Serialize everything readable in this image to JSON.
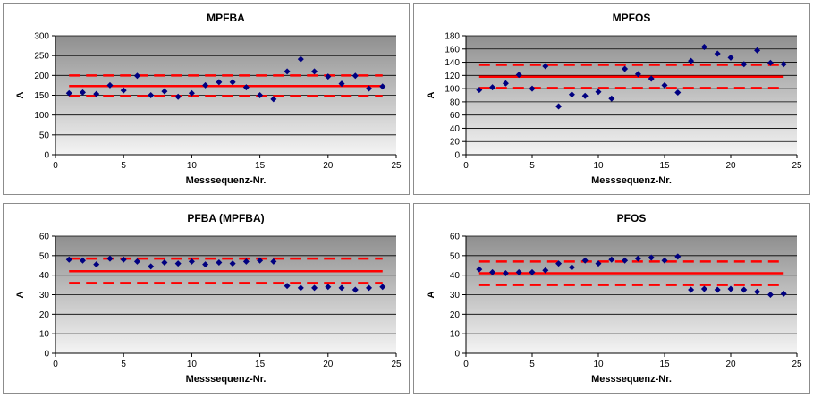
{
  "colors": {
    "panel_border": "#8c8c8c",
    "plot_gradient_top": "#8f8f8f",
    "plot_gradient_bottom": "#f4f4f4",
    "grid": "#000000",
    "control_limit": "#ff0000",
    "marker": "#000080"
  },
  "chart_data": [
    {
      "type": "scatter",
      "title": "MPFBA",
      "xlabel": "Messsequenz-Nr.",
      "ylabel": "A",
      "xlim": [
        0,
        25
      ],
      "ylim": [
        0,
        300
      ],
      "xticks": [
        0,
        5,
        10,
        15,
        20,
        25
      ],
      "yticks": [
        0,
        50,
        100,
        150,
        200,
        250,
        300
      ],
      "grid": true,
      "x": [
        1,
        2,
        3,
        4,
        5,
        6,
        7,
        8,
        9,
        10,
        11,
        12,
        13,
        14,
        15,
        16,
        17,
        18,
        19,
        20,
        21,
        22,
        23,
        24
      ],
      "y": [
        155,
        157,
        153,
        175,
        162,
        199,
        150,
        160,
        146,
        155,
        175,
        183,
        183,
        170,
        150,
        140,
        210,
        241,
        210,
        197,
        179,
        199,
        167,
        172
      ],
      "lines": {
        "mean": 173,
        "upper": 200,
        "lower": 148
      }
    },
    {
      "type": "scatter",
      "title": "MPFOS",
      "xlabel": "Messsequenz-Nr.",
      "ylabel": "A",
      "xlim": [
        0,
        25
      ],
      "ylim": [
        0,
        180
      ],
      "xticks": [
        0,
        5,
        10,
        15,
        20,
        25
      ],
      "yticks": [
        0,
        20,
        40,
        60,
        80,
        100,
        120,
        140,
        160,
        180
      ],
      "grid": true,
      "x": [
        1,
        2,
        3,
        4,
        5,
        6,
        7,
        8,
        9,
        10,
        11,
        12,
        13,
        14,
        15,
        16,
        17,
        18,
        19,
        20,
        21,
        22,
        23,
        24
      ],
      "y": [
        98,
        102,
        108,
        121,
        100,
        134,
        73,
        91,
        89,
        95,
        85,
        130,
        122,
        115,
        105,
        94,
        142,
        163,
        153,
        147,
        137,
        158,
        139,
        137
      ],
      "lines": {
        "mean": 118,
        "upper": 136,
        "lower": 101
      }
    },
    {
      "type": "scatter",
      "title": "PFBA (MPFBA)",
      "xlabel": "Messsequenz-Nr.",
      "ylabel": "A",
      "xlim": [
        0,
        25
      ],
      "ylim": [
        0,
        60
      ],
      "xticks": [
        0,
        5,
        10,
        15,
        20,
        25
      ],
      "yticks": [
        0,
        10,
        20,
        30,
        40,
        50,
        60
      ],
      "grid": true,
      "x": [
        1,
        2,
        3,
        4,
        5,
        6,
        7,
        8,
        9,
        10,
        11,
        12,
        13,
        14,
        15,
        16,
        17,
        18,
        19,
        20,
        21,
        22,
        23,
        24
      ],
      "y": [
        48,
        47.5,
        45.5,
        48.5,
        48,
        47,
        44.5,
        46.5,
        46,
        47,
        45.5,
        46.5,
        46,
        47,
        47.5,
        47,
        34.5,
        33.5,
        33.5,
        34,
        33.5,
        32.5,
        33.5,
        34
      ],
      "lines": {
        "mean": 42,
        "upper": 48.5,
        "lower": 36
      }
    },
    {
      "type": "scatter",
      "title": "PFOS",
      "xlabel": "Messsequenz-Nr.",
      "ylabel": "A",
      "xlim": [
        0,
        25
      ],
      "ylim": [
        0,
        60
      ],
      "xticks": [
        0,
        5,
        10,
        15,
        20,
        25
      ],
      "yticks": [
        0,
        10,
        20,
        30,
        40,
        50,
        60
      ],
      "grid": true,
      "x": [
        1,
        2,
        3,
        4,
        5,
        6,
        7,
        8,
        9,
        10,
        11,
        12,
        13,
        14,
        15,
        16,
        17,
        18,
        19,
        20,
        21,
        22,
        23,
        24
      ],
      "y": [
        43,
        41.5,
        41,
        41.5,
        41.5,
        42.5,
        46,
        44,
        47.5,
        46,
        48,
        47.5,
        48.5,
        49,
        47.5,
        49.5,
        32.5,
        33,
        32.5,
        33,
        32.5,
        31.5,
        30,
        30.5
      ],
      "lines": {
        "mean": 41,
        "upper": 47,
        "lower": 35
      }
    }
  ]
}
